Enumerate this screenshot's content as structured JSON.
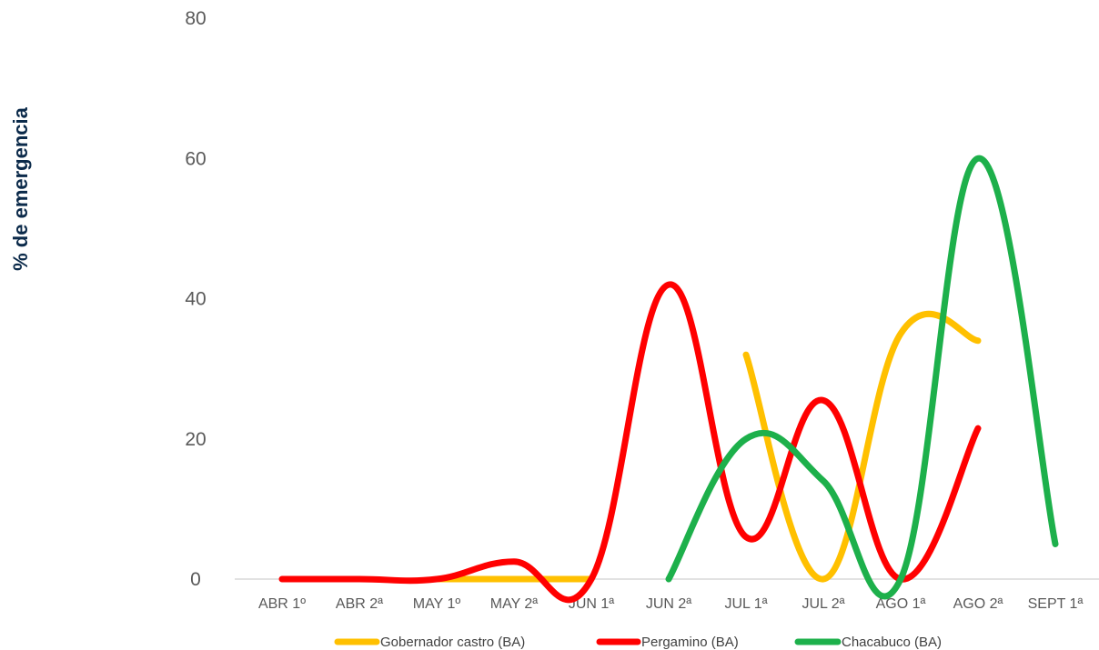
{
  "chart_data": {
    "type": "line",
    "title": "",
    "xlabel": "",
    "ylabel": "% de emergencia",
    "ylim": [
      0,
      80
    ],
    "yticks": [
      0,
      20,
      40,
      60,
      80
    ],
    "grid": false,
    "legend_position": "bottom",
    "categories": [
      "ABR 1º",
      "ABR  2ª",
      "MAY 1º",
      "MAY 2ª",
      "JUN 1ª",
      "JUN 2ª",
      "JUL 1ª",
      "JUL 2ª",
      "AGO 1ª",
      "AGO 2ª",
      "SEPT 1ª"
    ],
    "series": [
      {
        "name": "Gobernador castro (BA)",
        "color": "#FFC000",
        "values": [
          null,
          null,
          0,
          0,
          0,
          null,
          32,
          0,
          35,
          34,
          null
        ]
      },
      {
        "name": "Pergamino (BA)",
        "color": "#FF0000",
        "values": [
          0,
          0,
          0,
          2.5,
          0,
          42,
          6,
          25.5,
          0,
          21.5,
          null
        ]
      },
      {
        "name": "Chacabuco (BA)",
        "color": "#1DB04B",
        "values": [
          null,
          null,
          null,
          null,
          null,
          0,
          20,
          14,
          0,
          60,
          5
        ]
      }
    ]
  }
}
